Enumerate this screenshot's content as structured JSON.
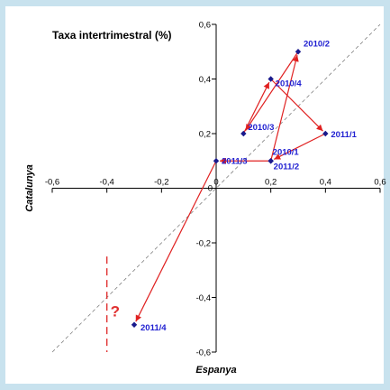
{
  "chart_data": {
    "type": "scatter",
    "title": "Taxa intertrimestral (%)",
    "xlabel": "Espanya",
    "ylabel": "Catalunya",
    "xlim": [
      -0.6,
      0.6
    ],
    "ylim": [
      -0.6,
      0.6
    ],
    "x_ticks": [
      "-0,6",
      "-0,4",
      "-0,2",
      "0",
      "0,2",
      "0,4",
      "0,6"
    ],
    "y_ticks": [
      "0,6",
      "0,4",
      "0,2",
      "0",
      "-0,2",
      "-0,4",
      "-0,6"
    ],
    "grid": false,
    "reference_line": "y = x",
    "connection": "arrows in chronological order",
    "points": [
      {
        "label": "2010/1",
        "x": 0.2,
        "y": 0.1
      },
      {
        "label": "2010/2",
        "x": 0.3,
        "y": 0.5
      },
      {
        "label": "2010/3",
        "x": 0.1,
        "y": 0.2
      },
      {
        "label": "2010/4",
        "x": 0.2,
        "y": 0.4
      },
      {
        "label": "2011/1",
        "x": 0.4,
        "y": 0.2
      },
      {
        "label": "2011/2",
        "x": 0.2,
        "y": 0.1
      },
      {
        "label": "2011/3",
        "x": 0.0,
        "y": 0.1
      },
      {
        "label": "2011/4",
        "x": -0.3,
        "y": -0.5
      }
    ],
    "annotation": {
      "text": "?",
      "x": -0.4
    },
    "colors": {
      "arrows": "#e02020",
      "markers": "#1a1a8c",
      "point_labels": "#1f1fd1",
      "annotation": "#e03030",
      "reference_line": "#808080",
      "plot_background": "#ffffff",
      "page_background": "#c8e2ee"
    }
  }
}
